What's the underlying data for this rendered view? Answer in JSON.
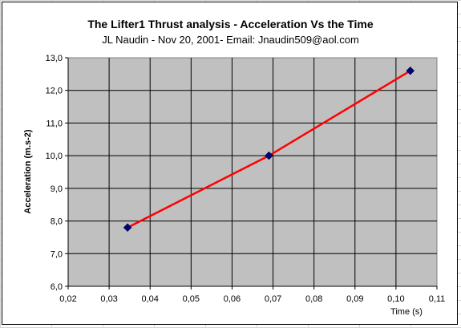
{
  "chart_data": {
    "type": "line",
    "title": "The Lifter1 Thrust analysis - Acceleration Vs the Time",
    "subtitle": "JL Naudin - Nov 20, 2001- Email: Jnaudin509@aol.com",
    "xlabel": "Time (s)",
    "ylabel": "Acceleration (m.s-2)",
    "xlim": [
      0.02,
      0.11
    ],
    "ylim": [
      6.0,
      13.0
    ],
    "x_ticks": [
      "0,02",
      "0,03",
      "0,04",
      "0,05",
      "0,06",
      "0,07",
      "0,08",
      "0,09",
      "0,10",
      "0,11"
    ],
    "y_ticks": [
      "6,0",
      "7,0",
      "8,0",
      "9,0",
      "10,0",
      "11,0",
      "12,0",
      "13,0"
    ],
    "grid": true,
    "plot_background": "#c0c0c0",
    "series": [
      {
        "marker_color": "#000080",
        "line_color": "#ff0000",
        "points": [
          {
            "x": 0.0345,
            "y": 7.8
          },
          {
            "x": 0.069,
            "y": 10.0
          },
          {
            "x": 0.1035,
            "y": 12.6
          }
        ]
      }
    ]
  }
}
